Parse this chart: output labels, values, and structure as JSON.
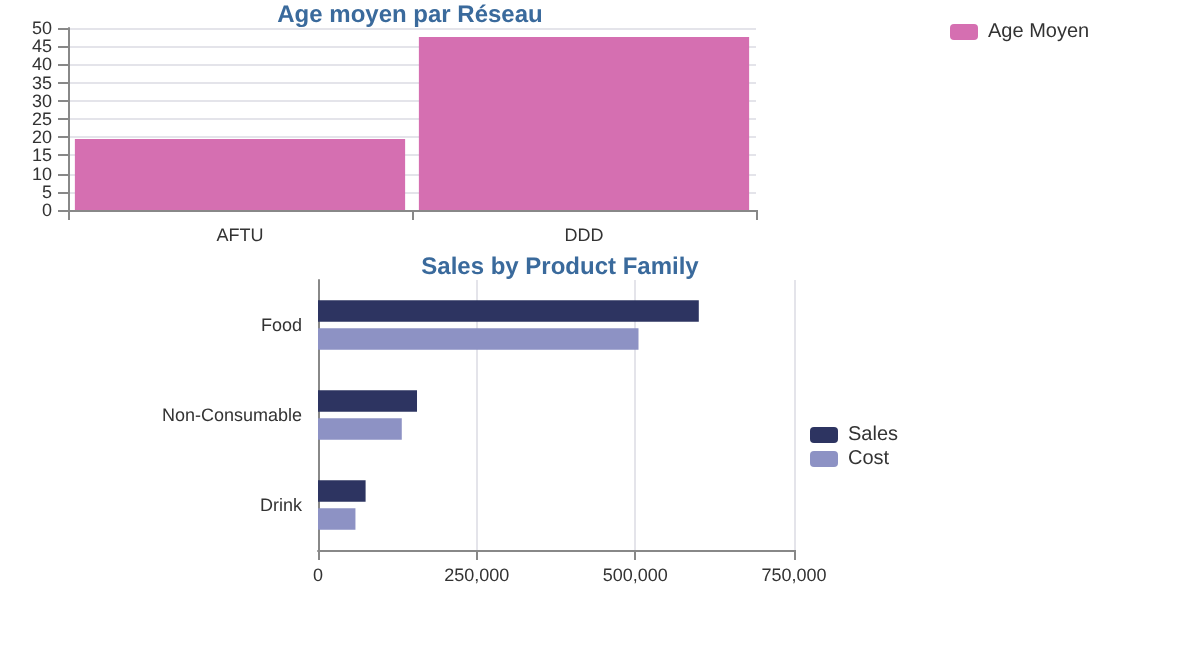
{
  "chart_data": [
    {
      "type": "bar",
      "title": "Age moyen par Réseau",
      "categories": [
        "AFTU",
        "DDD"
      ],
      "series": [
        {
          "name": "Age Moyen",
          "color": "#d56fb1",
          "values": [
            19.5,
            47.5
          ]
        }
      ],
      "ylim": [
        0,
        50
      ],
      "yticks": [
        0,
        5,
        10,
        15,
        20,
        25,
        30,
        35,
        40,
        45,
        50
      ],
      "grid": "y",
      "legend": "top right"
    },
    {
      "type": "bar",
      "title": "Sales by Product Family",
      "orientation": "horizontal",
      "categories": [
        "Food",
        "Non-Consumable",
        "Drink"
      ],
      "series": [
        {
          "name": "Sales",
          "color": "#2d3461",
          "values": [
            600000,
            156000,
            75000
          ]
        },
        {
          "name": "Cost",
          "color": "#8d92c4",
          "values": [
            505000,
            132000,
            59000
          ]
        }
      ],
      "xlim": [
        0,
        750000
      ],
      "xticks": [
        {
          "value": 0,
          "label": "0"
        },
        {
          "value": 250000,
          "label": "250,000"
        },
        {
          "value": 500000,
          "label": "500,000"
        },
        {
          "value": 750000,
          "label": "750,000"
        }
      ],
      "grid": "x",
      "legend": "right"
    }
  ]
}
